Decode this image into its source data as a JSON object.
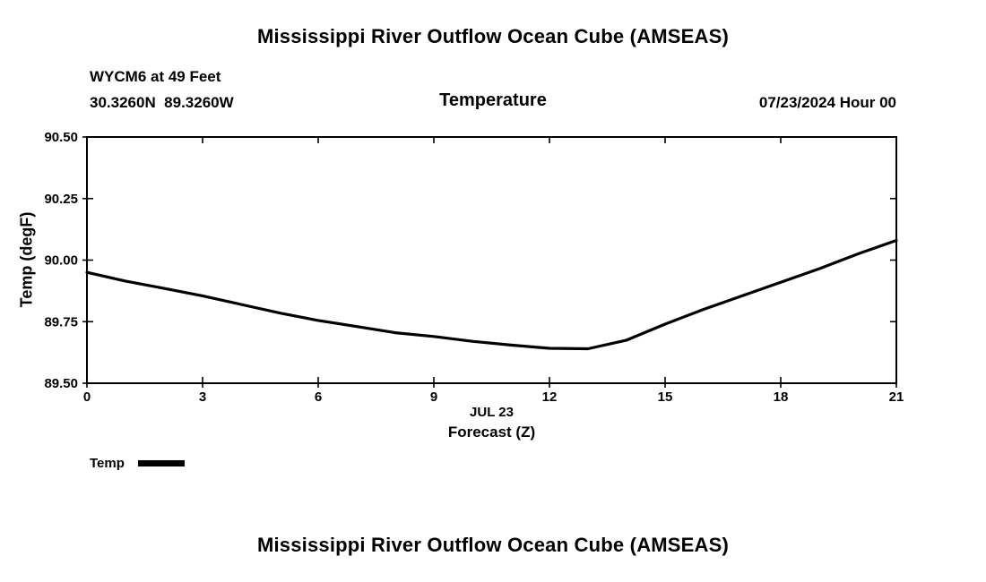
{
  "header": {
    "title": "Mississippi River Outflow Ocean Cube (AMSEAS)",
    "station": "WYCM6 at 49 Feet",
    "coords": "30.3260N  89.3260W",
    "plot_title": "Temperature",
    "datetime": "07/23/2024 Hour 00"
  },
  "chart_data": {
    "type": "line",
    "title": "Temperature",
    "xlabel_line1": "JUL 23",
    "xlabel_line2": "Forecast (Z)",
    "ylabel": "Temp (degF)",
    "xlim": [
      0,
      21
    ],
    "ylim": [
      89.5,
      90.5
    ],
    "xticks": [
      0,
      3,
      6,
      9,
      12,
      15,
      18,
      21
    ],
    "xtick_labels": [
      "0",
      "3",
      "6",
      "9",
      "12",
      "15",
      "18",
      "21"
    ],
    "yticks": [
      89.5,
      89.75,
      90.0,
      90.25,
      90.5
    ],
    "ytick_labels": [
      "89.50",
      "89.75",
      "90.00",
      "90.25",
      "90.50"
    ],
    "grid": false,
    "legend": {
      "label": "Temp",
      "position": "bottom-left"
    },
    "series": [
      {
        "name": "Temp",
        "color": "#000000",
        "line_width": 3.2,
        "x": [
          0,
          1,
          2,
          3,
          4,
          5,
          6,
          7,
          8,
          9,
          10,
          11,
          12,
          13,
          14,
          15,
          16,
          17,
          18,
          19,
          20,
          21
        ],
        "values": [
          89.95,
          89.915,
          89.885,
          89.855,
          89.82,
          89.785,
          89.755,
          89.73,
          89.705,
          89.69,
          89.67,
          89.655,
          89.642,
          89.64,
          89.675,
          89.74,
          89.8,
          89.855,
          89.91,
          89.965,
          90.025,
          90.08
        ]
      }
    ]
  },
  "footer": {
    "title": "Mississippi River Outflow Ocean Cube (AMSEAS)"
  }
}
